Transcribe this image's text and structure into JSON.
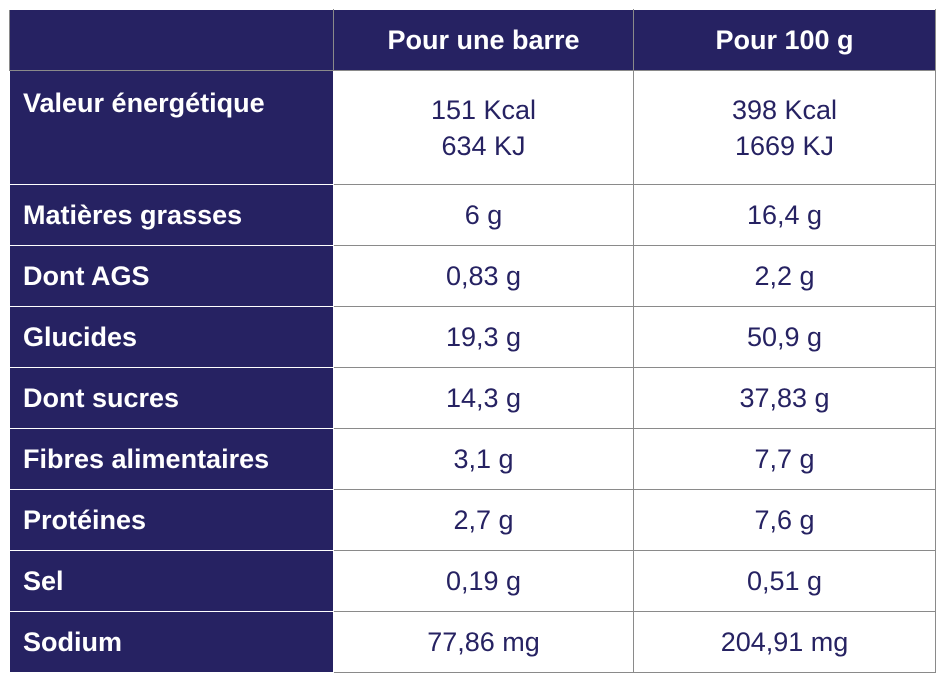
{
  "table": {
    "header": {
      "col_label": "",
      "col_per_bar": "Pour une barre",
      "col_per_100g": "Pour 100 g"
    },
    "rows": [
      {
        "label": "Valeur énergétique",
        "per_bar": [
          "151 Kcal",
          "634 KJ"
        ],
        "per_100g": [
          "398 Kcal",
          "1669 KJ"
        ]
      },
      {
        "label": "Matières grasses",
        "per_bar": "6 g",
        "per_100g": "16,4 g"
      },
      {
        "label": "Dont AGS",
        "per_bar": "0,83 g",
        "per_100g": "2,2 g"
      },
      {
        "label": "Glucides",
        "per_bar": "19,3 g",
        "per_100g": "50,9 g"
      },
      {
        "label": "Dont sucres",
        "per_bar": "14,3 g",
        "per_100g": "37,83 g"
      },
      {
        "label": "Fibres alimentaires",
        "per_bar": "3,1 g",
        "per_100g": "7,7 g"
      },
      {
        "label": "Protéines",
        "per_bar": "2,7 g",
        "per_100g": "7,6 g"
      },
      {
        "label": "Sel",
        "per_bar": "0,19 g",
        "per_100g": "0,51 g"
      },
      {
        "label": "Sodium",
        "per_bar": "77,86 mg",
        "per_100g": "204,91 mg"
      }
    ]
  },
  "colors": {
    "header_bg": "#262262",
    "value_text": "#262262",
    "label_text": "#ffffff"
  }
}
